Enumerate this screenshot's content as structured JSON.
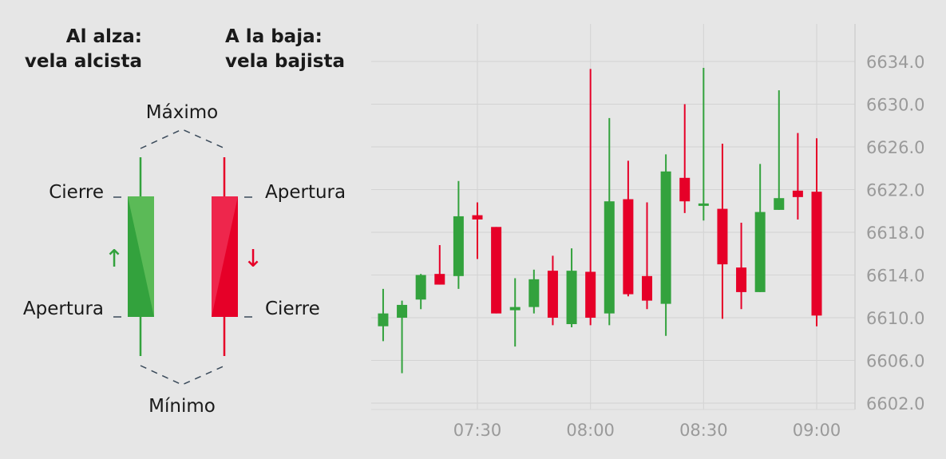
{
  "legend": {
    "bullish_title_1": "Al alza:",
    "bullish_title_2": "vela alcista",
    "bearish_title_1": "A la baja:",
    "bearish_title_2": "vela bajista",
    "high_label": "Máximo",
    "low_label": "Mínimo",
    "bullish_close": "Cierre",
    "bullish_open": "Apertura",
    "bearish_open": "Apertura",
    "bearish_close": "Cierre",
    "up_arrow": "↑",
    "down_arrow": "↓"
  },
  "colors": {
    "bullish": "#33a23d",
    "bearish": "#e60028",
    "grid": "#d3d3d3",
    "axis_text": "#9a9a9a"
  },
  "chart_data": {
    "type": "candlestick",
    "title": "",
    "xlabel": "",
    "ylabel": "",
    "y_axis_position": "right",
    "grid": true,
    "ylim": [
      6601.0,
      6637.0
    ],
    "y_ticks": [
      "6602.0",
      "6606.0",
      "6610.0",
      "6614.0",
      "6618.0",
      "6622.0",
      "6626.0",
      "6630.0",
      "6634.0"
    ],
    "x_ticks": [
      {
        "label": "07:30",
        "minute": 450
      },
      {
        "label": "08:00",
        "minute": 480
      },
      {
        "label": "08:30",
        "minute": 510
      },
      {
        "label": "09:00",
        "minute": 540
      }
    ],
    "xlim_minutes": [
      423,
      547
    ],
    "candles": [
      {
        "time": "07:05",
        "open": 6609.2,
        "high": 6612.7,
        "low": 6607.8,
        "close": 6610.4
      },
      {
        "time": "07:10",
        "open": 6610.0,
        "high": 6611.6,
        "low": 6604.8,
        "close": 6611.2
      },
      {
        "time": "07:15",
        "open": 6611.7,
        "high": 6614.1,
        "low": 6610.8,
        "close": 6614.0
      },
      {
        "time": "07:20",
        "open": 6614.1,
        "high": 6616.8,
        "low": 6613.1,
        "close": 6613.1
      },
      {
        "time": "07:25",
        "open": 6613.9,
        "high": 6622.8,
        "low": 6612.7,
        "close": 6619.5
      },
      {
        "time": "07:30",
        "open": 6619.6,
        "high": 6620.8,
        "low": 6615.5,
        "close": 6619.2
      },
      {
        "time": "07:35",
        "open": 6618.5,
        "high": 6618.5,
        "low": 6610.4,
        "close": 6610.4
      },
      {
        "time": "07:40",
        "open": 6610.7,
        "high": 6613.7,
        "low": 6607.3,
        "close": 6611.0
      },
      {
        "time": "07:45",
        "open": 6611.0,
        "high": 6614.5,
        "low": 6610.4,
        "close": 6613.6
      },
      {
        "time": "07:50",
        "open": 6614.4,
        "high": 6615.8,
        "low": 6609.3,
        "close": 6610.0
      },
      {
        "time": "07:55",
        "open": 6609.4,
        "high": 6616.5,
        "low": 6609.1,
        "close": 6614.4
      },
      {
        "time": "08:00",
        "open": 6614.3,
        "high": 6633.3,
        "low": 6609.3,
        "close": 6610.0
      },
      {
        "time": "08:05",
        "open": 6610.4,
        "high": 6628.7,
        "low": 6609.3,
        "close": 6620.9
      },
      {
        "time": "08:10",
        "open": 6621.1,
        "high": 6624.7,
        "low": 6612.0,
        "close": 6612.2
      },
      {
        "time": "08:15",
        "open": 6613.9,
        "high": 6620.8,
        "low": 6610.8,
        "close": 6611.6
      },
      {
        "time": "08:20",
        "open": 6611.3,
        "high": 6625.3,
        "low": 6608.3,
        "close": 6623.7
      },
      {
        "time": "08:25",
        "open": 6623.1,
        "high": 6630.0,
        "low": 6619.8,
        "close": 6620.9
      },
      {
        "time": "08:30",
        "open": 6620.6,
        "high": 6633.4,
        "low": 6619.1,
        "close": 6620.7
      },
      {
        "time": "08:35",
        "open": 6620.2,
        "high": 6626.3,
        "low": 6609.9,
        "close": 6615.0
      },
      {
        "time": "08:40",
        "open": 6614.7,
        "high": 6618.9,
        "low": 6610.8,
        "close": 6612.4
      },
      {
        "time": "08:45",
        "open": 6612.4,
        "high": 6624.4,
        "low": 6612.4,
        "close": 6619.9
      },
      {
        "time": "08:50",
        "open": 6620.1,
        "high": 6631.3,
        "low": 6620.1,
        "close": 6621.2
      },
      {
        "time": "08:55",
        "open": 6621.9,
        "high": 6627.3,
        "low": 6619.2,
        "close": 6621.3
      },
      {
        "time": "09:00",
        "open": 6621.8,
        "high": 6626.8,
        "low": 6609.2,
        "close": 6610.2
      }
    ]
  }
}
